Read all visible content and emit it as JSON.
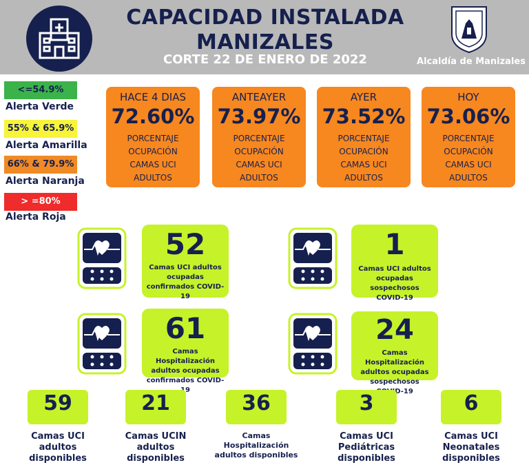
{
  "header": {
    "title_line1": "CAPACIDAD INSTALADA",
    "title_line2": "MANIZALES",
    "date": "CORTE 22 DE ENERO DE 2022",
    "org": "Alcaldía de Manizales"
  },
  "legend": [
    {
      "range": "<=54.9%",
      "label": "Alerta Verde",
      "color": "#3bb34a"
    },
    {
      "range": "55% & 65.9%",
      "label": "Alerta Amarilla",
      "color": "#f7f43a"
    },
    {
      "range": "66% & 79.9%",
      "label": "Alerta Naranja",
      "color": "#f08a25"
    },
    {
      "range": "> =80%",
      "label": "Alerta Roja",
      "color": "#ef2b2b"
    }
  ],
  "days": [
    {
      "title": "HACE 4 DIAS",
      "value": "72.60%",
      "desc": "PORCENTAJE OCUPACIÓN CAMAS UCI ADULTOS"
    },
    {
      "title": "ANTEAYER",
      "value": "73.97%",
      "desc": "PORCENTAJE OCUPACIÓN CAMAS UCI ADULTOS"
    },
    {
      "title": "AYER",
      "value": "73.52%",
      "desc": "PORCENTAJE OCUPACIÓN CAMAS UCI ADULTOS"
    },
    {
      "title": "HOY",
      "value": "73.06%",
      "desc": "PORCENTAJE OCUPACIÓN CAMAS UCI ADULTOS"
    }
  ],
  "stats": [
    {
      "value": "52",
      "desc": "Camas UCI adultos ocupadas confirmados COVID-19"
    },
    {
      "value": "1",
      "desc": "Camas UCI adultos ocupadas sospechosos COVID-19"
    },
    {
      "value": "61",
      "desc": "Camas Hospitalización adultos ocupadas confirmados COVID-19"
    },
    {
      "value": "24",
      "desc": "Camas Hospitalización adultos ocupadas sospechosos COVID-19"
    }
  ],
  "available": [
    {
      "value": "59",
      "label": "Camas UCI adultos disponibles"
    },
    {
      "value": "21",
      "label": "Camas UCIN adultos disponibles"
    },
    {
      "value": "36",
      "label": "Camas Hospitalización adultos disponibles"
    },
    {
      "value": "3",
      "label": "Camas UCI Pediátricas disponibles"
    },
    {
      "value": "6",
      "label": "Camas UCI Neonatales disponibles"
    }
  ],
  "icons": {
    "hospital": "hospital-icon",
    "shield": "city-shield-icon",
    "monitor": "heart-monitor-icon"
  }
}
